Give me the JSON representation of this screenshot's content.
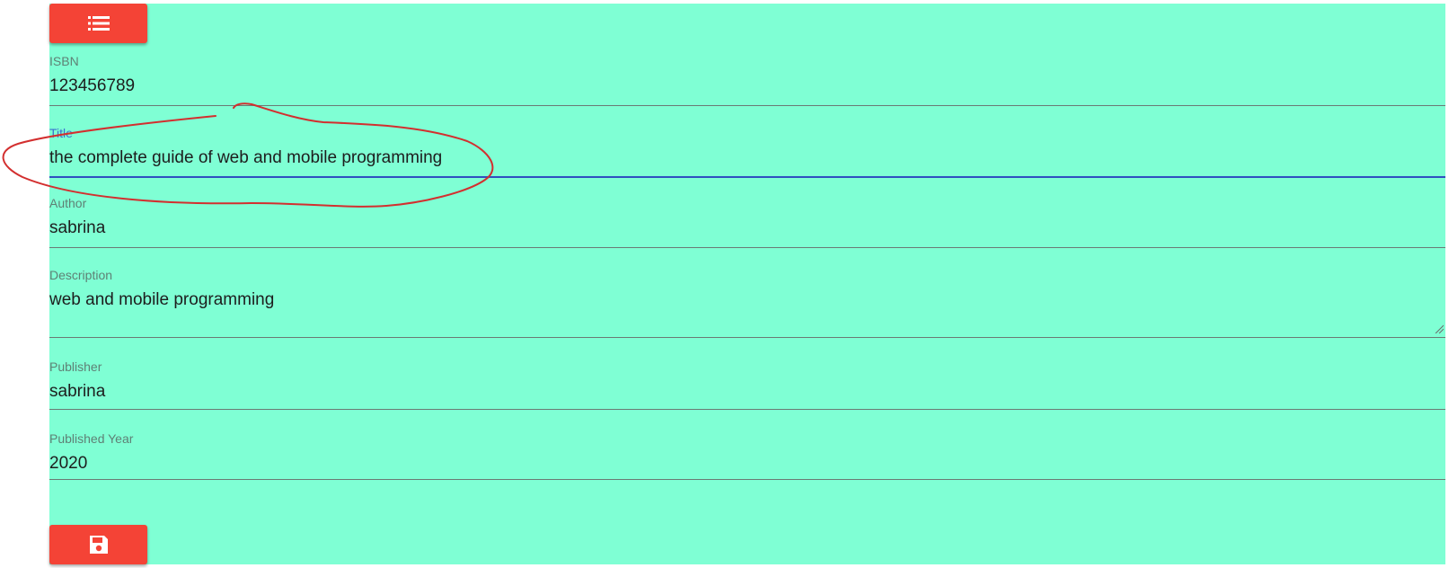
{
  "toolbar": {
    "list_icon": "list-icon",
    "save_icon": "floppy-disk-icon",
    "button_color": "#f44336"
  },
  "form": {
    "background_color": "#7fffd4",
    "isbn": {
      "label": "ISBN",
      "value": "123456789"
    },
    "title": {
      "label": "Title",
      "value": "the complete guide of web and mobile programming"
    },
    "author": {
      "label": "Author",
      "value": "sabrina"
    },
    "description": {
      "label": "Description",
      "value": "web and mobile programming"
    },
    "publisher": {
      "label": "Publisher",
      "value": "sabrina"
    },
    "published_year": {
      "label": "Published Year",
      "value": "2020"
    }
  },
  "annotation": {
    "color": "#d32f2f",
    "target": "title-field"
  }
}
